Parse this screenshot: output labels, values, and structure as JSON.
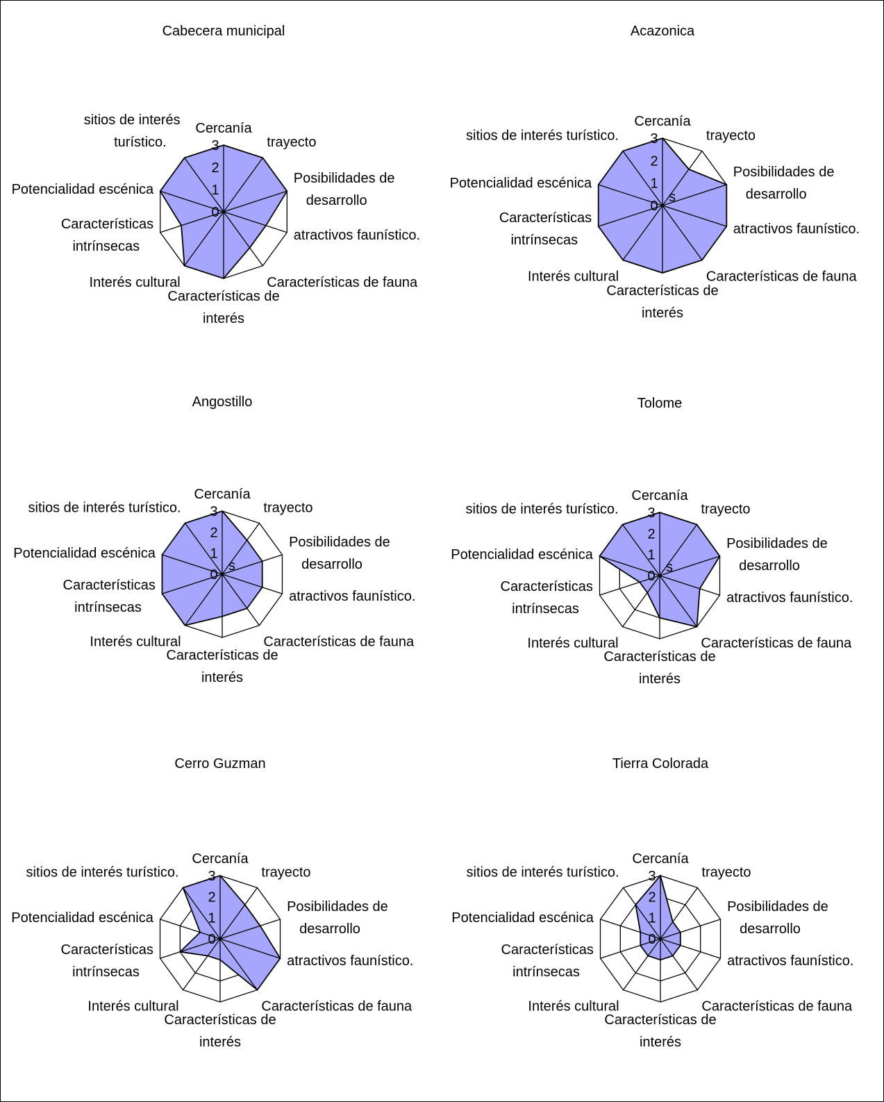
{
  "colors": {
    "fill": "#a6a6ff",
    "stroke": "#000000",
    "background": "#ffffff"
  },
  "chart_data": [
    {
      "type": "radar",
      "title": "Cabecera municipal",
      "categories": [
        "Cercanía",
        "trayecto",
        "Posibilidades de desarrollo",
        "atractivos faunístico.",
        "Características de fauna",
        "Características de interés",
        "Interés cultural",
        "Características intrínsecas",
        "Potencialidad escénica",
        "sitios de interés turístico."
      ],
      "series": [
        {
          "values": [
            3,
            3,
            3,
            2,
            2,
            3,
            3,
            2,
            3,
            3
          ]
        }
      ],
      "rlim": [
        0,
        3
      ],
      "ticks": [
        0,
        1,
        2,
        3
      ],
      "grid": true,
      "extra_label": ""
    },
    {
      "type": "radar",
      "title": "Acazonica",
      "categories": [
        "Cercanía",
        "trayecto",
        "Posibilidades de desarrollo",
        "atractivos faunístico.",
        "Características de fauna",
        "Características de interés",
        "Interés cultural",
        "Características intrínsecas",
        "Potencialidad escénica",
        "sitios de interés turístico."
      ],
      "series": [
        {
          "values": [
            3,
            2,
            3,
            3,
            3,
            3,
            3,
            3,
            3,
            3
          ]
        }
      ],
      "rlim": [
        0,
        3
      ],
      "ticks": [
        0,
        1,
        2,
        3
      ],
      "grid": true,
      "extra_label": "s"
    },
    {
      "type": "radar",
      "title": "Angostillo",
      "categories": [
        "Cercanía",
        "trayecto",
        "Posibilidades de desarrollo",
        "atractivos faunístico.",
        "Características de fauna",
        "Características de interés",
        "Interés cultural",
        "Características intrínsecas",
        "Potencialidad escénica",
        "sitios de interés turístico."
      ],
      "series": [
        {
          "values": [
            3,
            2,
            2,
            2,
            2,
            2,
            3,
            3,
            3,
            3
          ]
        }
      ],
      "rlim": [
        0,
        3
      ],
      "ticks": [
        0,
        1,
        2,
        3
      ],
      "grid": true,
      "extra_label": "s"
    },
    {
      "type": "radar",
      "title": "Tolome",
      "categories": [
        "Cercanía",
        "trayecto",
        "Posibilidades de desarrollo",
        "atractivos faunístico.",
        "Características de fauna",
        "Características de interés",
        "Interés cultural",
        "Características intrínsecas",
        "Potencialidad escénica",
        "sitios de interés turístico."
      ],
      "series": [
        {
          "values": [
            3,
            3,
            3,
            2,
            3,
            2,
            1,
            1,
            3,
            3
          ]
        }
      ],
      "rlim": [
        0,
        3
      ],
      "ticks": [
        0,
        1,
        2,
        3
      ],
      "grid": true,
      "extra_label": "s"
    },
    {
      "type": "radar",
      "title": "Cerro Guzman",
      "categories": [
        "Cercanía",
        "trayecto",
        "Posibilidades de desarrollo",
        "atractivos faunístico.",
        "Características de fauna",
        "Características de interés",
        "Interés cultural",
        "Características intrínsecas",
        "Potencialidad escénica",
        "sitios de interés turístico."
      ],
      "series": [
        {
          "values": [
            3,
            2,
            2,
            3,
            3,
            1,
            1,
            2,
            1,
            3
          ]
        }
      ],
      "rlim": [
        0,
        3
      ],
      "ticks": [
        0,
        1,
        2,
        3
      ],
      "grid": true,
      "extra_label": ""
    },
    {
      "type": "radar",
      "title": "Tierra Colorada",
      "categories": [
        "Cercanía",
        "trayecto",
        "Posibilidades de desarrollo",
        "atractivos faunístico.",
        "Características de fauna",
        "Características de interés",
        "Interés cultural",
        "Características intrínsecas",
        "Potencialidad escénica",
        "sitios de interés turístico."
      ],
      "series": [
        {
          "values": [
            3,
            1,
            1,
            1,
            1,
            1,
            1,
            1,
            1,
            2
          ]
        }
      ],
      "rlim": [
        0,
        3
      ],
      "ticks": [
        0,
        1,
        2,
        3
      ],
      "grid": true,
      "extra_label": ""
    }
  ]
}
